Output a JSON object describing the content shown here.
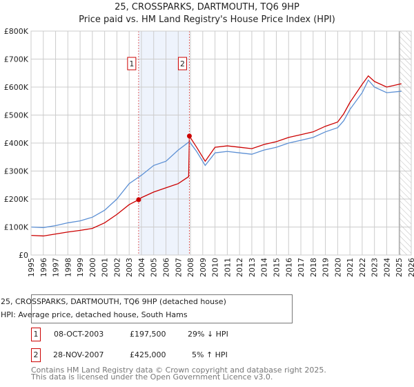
{
  "chart_data": {
    "type": "line",
    "title": "25, CROSSPARKS, DARTMOUTH, TQ6 9HP",
    "subtitle": "Price paid vs. HM Land Registry's House Price Index (HPI)",
    "xlim": [
      1995,
      2026
    ],
    "ylim": [
      0,
      800000
    ],
    "yticks": [
      {
        "v": 0,
        "label": "£0"
      },
      {
        "v": 100000,
        "label": "£100K"
      },
      {
        "v": 200000,
        "label": "£200K"
      },
      {
        "v": 300000,
        "label": "£300K"
      },
      {
        "v": 400000,
        "label": "£400K"
      },
      {
        "v": 500000,
        "label": "£500K"
      },
      {
        "v": 600000,
        "label": "£600K"
      },
      {
        "v": 700000,
        "label": "£700K"
      },
      {
        "v": 800000,
        "label": "£800K"
      }
    ],
    "xticks": [
      "1995",
      "1996",
      "1997",
      "1998",
      "1999",
      "2000",
      "2001",
      "2002",
      "2003",
      "2004",
      "2005",
      "2006",
      "2007",
      "2008",
      "2009",
      "2010",
      "2011",
      "2012",
      "2013",
      "2014",
      "2015",
      "2016",
      "2017",
      "2018",
      "2019",
      "2020",
      "2021",
      "2022",
      "2023",
      "2024",
      "2025",
      "2026"
    ],
    "grid": true,
    "shaded_range": [
      2003.77,
      2007.91
    ],
    "hatched_from": 2025.05,
    "series": [
      {
        "name": "25, CROSSPARKS, DARTMOUTH, TQ6 9HP (detached house)",
        "color": "#cc0000",
        "x": [
          1995,
          1996,
          1997,
          1998,
          1999,
          2000,
          2001,
          2002,
          2003,
          2003.77,
          2004,
          2005,
          2006,
          2007,
          2007.85,
          2007.91,
          2008.5,
          2009.2,
          2010,
          2011,
          2012,
          2013,
          2014,
          2015,
          2016,
          2017,
          2018,
          2019,
          2020,
          2020.5,
          2021,
          2022,
          2022.5,
          2023,
          2024,
          2025.2
        ],
        "y": [
          70000,
          68000,
          75000,
          82000,
          88000,
          95000,
          115000,
          145000,
          180000,
          197500,
          205000,
          225000,
          240000,
          255000,
          280000,
          425000,
          385000,
          335000,
          385000,
          390000,
          385000,
          380000,
          395000,
          405000,
          420000,
          430000,
          440000,
          460000,
          475000,
          505000,
          545000,
          610000,
          640000,
          620000,
          600000,
          612000
        ]
      },
      {
        "name": "HPI: Average price, detached house, South Hams",
        "color": "#5b8fd4",
        "x": [
          1995,
          1996,
          1997,
          1998,
          1999,
          2000,
          2001,
          2002,
          2003,
          2004,
          2005,
          2006,
          2007,
          2007.91,
          2008.5,
          2009.2,
          2010,
          2011,
          2012,
          2013,
          2014,
          2015,
          2016,
          2017,
          2018,
          2019,
          2020,
          2020.5,
          2021,
          2022,
          2022.5,
          2023,
          2024,
          2025.2
        ],
        "y": [
          100000,
          98000,
          105000,
          115000,
          122000,
          135000,
          160000,
          200000,
          255000,
          285000,
          320000,
          335000,
          375000,
          405000,
          370000,
          320000,
          365000,
          370000,
          365000,
          360000,
          375000,
          385000,
          400000,
          410000,
          420000,
          440000,
          455000,
          480000,
          520000,
          580000,
          625000,
          600000,
          580000,
          585000
        ]
      }
    ],
    "sales": [
      {
        "id": "1",
        "x": 2003.77,
        "y": 197500,
        "date": "08-OCT-2003",
        "price": "£197,500",
        "hpi": "29% ↓ HPI"
      },
      {
        "id": "2",
        "x": 2007.91,
        "y": 425000,
        "date": "28-NOV-2007",
        "price": "£425,000",
        "hpi": "5% ↑ HPI"
      }
    ]
  },
  "footer": {
    "line1": "Contains HM Land Registry data © Crown copyright and database right 2025.",
    "line2": "This data is licensed under the Open Government Licence v3.0."
  }
}
